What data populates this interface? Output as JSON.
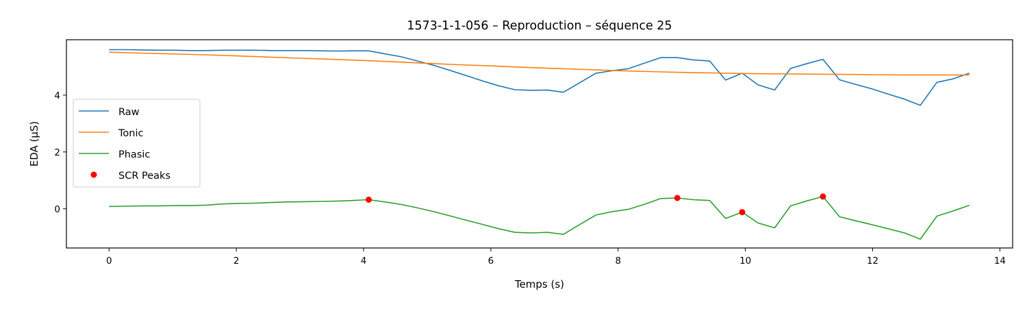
{
  "chart_data": {
    "type": "line",
    "title": "1573-1-1-056 – Reproduction – séquence 25",
    "xlabel": "Temps (s)",
    "ylabel": "EDA (µS)",
    "xlim": [
      -0.67,
      14.2
    ],
    "ylim": [
      -1.38,
      5.95
    ],
    "xticks": [
      0,
      2,
      4,
      6,
      8,
      10,
      12,
      14
    ],
    "yticks": [
      0,
      2,
      4
    ],
    "grid": false,
    "legend_position": "center-left",
    "series": [
      {
        "name": "Raw",
        "color": "#1f77b4",
        "x": [
          0,
          0.26,
          0.51,
          0.77,
          1.02,
          1.28,
          1.53,
          1.79,
          2.04,
          2.3,
          2.55,
          2.81,
          3.06,
          3.32,
          3.57,
          3.83,
          4.08,
          4.34,
          4.59,
          4.85,
          5.1,
          5.36,
          5.61,
          5.87,
          6.12,
          6.38,
          6.63,
          6.89,
          7.14,
          7.4,
          7.65,
          7.91,
          8.16,
          8.42,
          8.67,
          8.93,
          9.18,
          9.44,
          9.69,
          9.95,
          10.2,
          10.46,
          10.71,
          10.97,
          11.22,
          11.48,
          11.73,
          11.99,
          12.24,
          12.5,
          12.75,
          13.01,
          13.26,
          13.52
        ],
        "y": [
          5.6,
          5.6,
          5.59,
          5.58,
          5.58,
          5.57,
          5.57,
          5.58,
          5.58,
          5.58,
          5.57,
          5.57,
          5.57,
          5.56,
          5.55,
          5.56,
          5.56,
          5.45,
          5.35,
          5.2,
          5.05,
          4.87,
          4.69,
          4.5,
          4.33,
          4.19,
          4.17,
          4.18,
          4.1,
          4.44,
          4.77,
          4.86,
          4.93,
          5.13,
          5.32,
          5.32,
          5.24,
          5.2,
          4.53,
          4.77,
          4.36,
          4.18,
          4.94,
          5.11,
          5.26,
          4.54,
          4.38,
          4.22,
          4.04,
          3.86,
          3.64,
          4.45,
          4.57,
          4.77
        ]
      },
      {
        "name": "Tonic",
        "color": "#ff7f0e",
        "x": [
          0,
          0.5,
          1,
          1.5,
          2,
          2.5,
          3,
          3.5,
          4,
          4.5,
          5,
          5.5,
          6,
          6.5,
          7,
          7.5,
          8,
          8.5,
          9,
          9.5,
          10,
          10.5,
          11,
          11.5,
          12,
          12.5,
          13,
          13.52
        ],
        "y": [
          5.51,
          5.48,
          5.45,
          5.42,
          5.38,
          5.34,
          5.3,
          5.26,
          5.22,
          5.17,
          5.12,
          5.07,
          5.03,
          4.98,
          4.94,
          4.9,
          4.86,
          4.83,
          4.8,
          4.78,
          4.76,
          4.75,
          4.74,
          4.73,
          4.72,
          4.71,
          4.71,
          4.71
        ]
      },
      {
        "name": "Phasic",
        "color": "#2ca02c",
        "x": [
          0,
          0.26,
          0.51,
          0.77,
          1.02,
          1.28,
          1.53,
          1.79,
          2.04,
          2.3,
          2.55,
          2.81,
          3.06,
          3.32,
          3.57,
          3.83,
          4.08,
          4.34,
          4.59,
          4.85,
          5.1,
          5.36,
          5.61,
          5.87,
          6.12,
          6.38,
          6.63,
          6.89,
          7.14,
          7.4,
          7.65,
          7.91,
          8.16,
          8.42,
          8.67,
          8.93,
          9.18,
          9.44,
          9.69,
          9.95,
          10.2,
          10.46,
          10.71,
          10.97,
          11.22,
          11.48,
          11.73,
          11.99,
          12.24,
          12.5,
          12.75,
          13.01,
          13.26,
          13.52
        ],
        "y": [
          0.08,
          0.09,
          0.1,
          0.1,
          0.11,
          0.11,
          0.13,
          0.17,
          0.19,
          0.2,
          0.22,
          0.24,
          0.25,
          0.26,
          0.27,
          0.29,
          0.32,
          0.24,
          0.15,
          0.03,
          -0.1,
          -0.25,
          -0.4,
          -0.55,
          -0.7,
          -0.83,
          -0.85,
          -0.83,
          -0.9,
          -0.55,
          -0.22,
          -0.1,
          -0.02,
          0.16,
          0.36,
          0.38,
          0.32,
          0.29,
          -0.34,
          -0.12,
          -0.5,
          -0.67,
          0.1,
          0.28,
          0.43,
          -0.28,
          -0.42,
          -0.56,
          -0.7,
          -0.85,
          -1.07,
          -0.26,
          -0.08,
          0.12
        ]
      }
    ],
    "scr_peaks": {
      "name": "SCR Peaks",
      "color": "#ff0000",
      "x": [
        4.08,
        8.93,
        9.95,
        11.22
      ],
      "y": [
        0.32,
        0.38,
        -0.12,
        0.43
      ]
    }
  }
}
